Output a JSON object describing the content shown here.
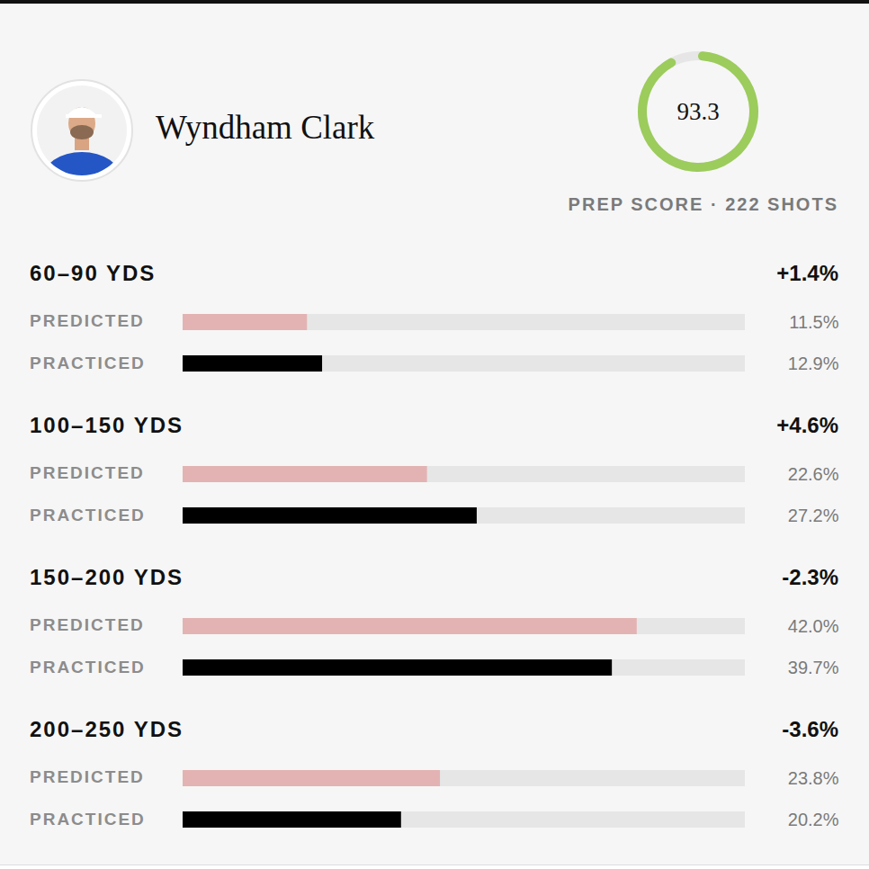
{
  "header": {
    "name": "Wyndham Clark",
    "prep_score": 93.3,
    "prep_score_range": [
      0,
      100
    ],
    "prep_score_label": "PREP SCORE · 222 SHOTS"
  },
  "chart_data": {
    "type": "bar",
    "orientation": "horizontal",
    "categories": [
      "60–90 YDS",
      "100–150 YDS",
      "150–200 YDS",
      "200–250 YDS"
    ],
    "series": [
      {
        "name": "PREDICTED",
        "color": "#e3b3b3",
        "values": [
          11.5,
          22.6,
          42.0,
          23.8
        ],
        "value_labels": [
          "11.5%",
          "22.6%",
          "42.0%",
          "23.8%"
        ]
      },
      {
        "name": "PRACTICED",
        "color": "#000000",
        "values": [
          12.9,
          27.2,
          39.7,
          20.2
        ],
        "value_labels": [
          "12.9%",
          "27.2%",
          "39.7%",
          "20.2%"
        ]
      }
    ],
    "difference_labels": [
      "+1.4%",
      "+4.6%",
      "-2.3%",
      "-3.6%"
    ],
    "xlim": [
      0,
      52
    ],
    "tick_labels": false,
    "data_labels": true,
    "grid": false
  }
}
